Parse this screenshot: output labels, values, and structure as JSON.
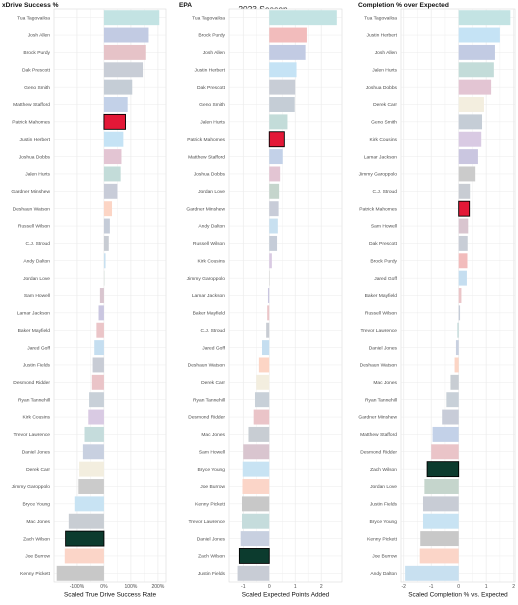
{
  "figure": {
    "season_label": "2023 Season",
    "colors": {
      "highlight_fill": "#e31837",
      "highlight_outline": "#000000",
      "panel_background": "#ffffff",
      "grid": "#ebebeb",
      "panel_border": "#d9d9d9"
    }
  },
  "chart_data": [
    {
      "type": "bar",
      "orientation": "horizontal",
      "title": "xDrive Success %",
      "xlabel": "Scaled True Drive Success Rate",
      "ylabel": "",
      "xlim": [
        -1.85,
        2.3
      ],
      "xticks": [
        -1,
        0,
        1,
        2
      ],
      "xtick_labels": [
        "-100%",
        "0%",
        "100%",
        "200%"
      ],
      "grid": true,
      "bars": [
        {
          "player": "Tua Tagovailoa",
          "value": 2.05,
          "color": "#c3e3e3"
        },
        {
          "player": "Josh Allen",
          "value": 1.65,
          "color": "#c2cbe3"
        },
        {
          "player": "Brock Purdy",
          "value": 1.55,
          "color": "#e6c3c8"
        },
        {
          "player": "Dak Prescott",
          "value": 1.45,
          "color": "#c8cdd6"
        },
        {
          "player": "Geno Smith",
          "value": 1.05,
          "color": "#c5cdd6"
        },
        {
          "player": "Matthew Stafford",
          "value": 0.88,
          "color": "#c3d1e8"
        },
        {
          "player": "Patrick Mahomes",
          "value": 0.8,
          "color": "#e31837",
          "highlight": true
        },
        {
          "player": "Justin Herbert",
          "value": 0.72,
          "color": "#c5e3f5"
        },
        {
          "player": "Joshua Dobbs",
          "value": 0.65,
          "color": "#e3c5d3"
        },
        {
          "player": "Jalen Hurts",
          "value": 0.62,
          "color": "#c3dcd9"
        },
        {
          "player": "Gardner Minshew",
          "value": 0.5,
          "color": "#c8ccd8"
        },
        {
          "player": "Deshaun Watson",
          "value": 0.3,
          "color": "#fcd5c5"
        },
        {
          "player": "Russell Wilson",
          "value": 0.22,
          "color": "#c5ccd8"
        },
        {
          "player": "C.J. Stroud",
          "value": 0.18,
          "color": "#c8ccd3"
        },
        {
          "player": "Andy Dalton",
          "value": 0.06,
          "color": "#c8e0f0"
        },
        {
          "player": "Jordan Love",
          "value": 0.0,
          "color": "#c5d5cc"
        },
        {
          "player": "Sam Howell",
          "value": -0.15,
          "color": "#d9c5cf"
        },
        {
          "player": "Lamar Jackson",
          "value": -0.2,
          "color": "#cac6e0"
        },
        {
          "player": "Baker Mayfield",
          "value": -0.28,
          "color": "#ebc5c8"
        },
        {
          "player": "Jared Goff",
          "value": -0.36,
          "color": "#c5def0"
        },
        {
          "player": "Justin Fields",
          "value": -0.42,
          "color": "#c8ccd5"
        },
        {
          "player": "Desmond Ridder",
          "value": -0.45,
          "color": "#eac4c8"
        },
        {
          "player": "Ryan Tannehill",
          "value": -0.55,
          "color": "#c8d0d8"
        },
        {
          "player": "Kirk Cousins",
          "value": -0.58,
          "color": "#d9cae3"
        },
        {
          "player": "Trevor Lawrence",
          "value": -0.72,
          "color": "#c5dcdc"
        },
        {
          "player": "Daniel Jones",
          "value": -0.78,
          "color": "#c8d0e0"
        },
        {
          "player": "Derek Carr",
          "value": -0.92,
          "color": "#f3eedf"
        },
        {
          "player": "Jimmy Garoppolo",
          "value": -0.95,
          "color": "#cbcbcb"
        },
        {
          "player": "Bryce Young",
          "value": -1.08,
          "color": "#c8e3f3"
        },
        {
          "player": "Mac Jones",
          "value": -1.3,
          "color": "#c8cdd3"
        },
        {
          "player": "Zach Wilson",
          "value": -1.42,
          "color": "#0c3b2e",
          "highlight": true
        },
        {
          "player": "Joe Burrow",
          "value": -1.45,
          "color": "#fbd5c8"
        },
        {
          "player": "Kenny Pickett",
          "value": -1.75,
          "color": "#c8c8c8"
        }
      ]
    },
    {
      "type": "bar",
      "orientation": "horizontal",
      "title": "EPA",
      "xlabel": "Scaled Expected Points Added",
      "ylabel": "",
      "xlim": [
        -1.55,
        2.8
      ],
      "xticks": [
        -1,
        0,
        1,
        2
      ],
      "xtick_labels": [
        "-1",
        "0",
        "1",
        "2"
      ],
      "grid": true,
      "bars": [
        {
          "player": "Tua Tagovailoa",
          "value": 2.6,
          "color": "#c3e3e3"
        },
        {
          "player": "Brock Purdy",
          "value": 1.45,
          "color": "#f2bcbc"
        },
        {
          "player": "Josh Allen",
          "value": 1.4,
          "color": "#c2cbe3"
        },
        {
          "player": "Justin Herbert",
          "value": 1.05,
          "color": "#c5e3f5"
        },
        {
          "player": "Dak Prescott",
          "value": 1.0,
          "color": "#c8cdd6"
        },
        {
          "player": "Geno Smith",
          "value": 0.98,
          "color": "#c5cdd6"
        },
        {
          "player": "Jalen Hurts",
          "value": 0.7,
          "color": "#c3dcd9"
        },
        {
          "player": "Patrick Mahomes",
          "value": 0.58,
          "color": "#e31837",
          "highlight": true
        },
        {
          "player": "Matthew Stafford",
          "value": 0.52,
          "color": "#c3d1e8"
        },
        {
          "player": "Joshua Dobbs",
          "value": 0.42,
          "color": "#e3c5d3"
        },
        {
          "player": "Jordan Love",
          "value": 0.38,
          "color": "#c5d5cc"
        },
        {
          "player": "Gardner Minshew",
          "value": 0.36,
          "color": "#c8ccd8"
        },
        {
          "player": "Andy Dalton",
          "value": 0.33,
          "color": "#c8e0f0"
        },
        {
          "player": "Russell Wilson",
          "value": 0.3,
          "color": "#c5ccd8"
        },
        {
          "player": "Kirk Cousins",
          "value": 0.1,
          "color": "#d9cae3"
        },
        {
          "player": "Jimmy Garoppolo",
          "value": 0.0,
          "color": "#cbcbcb"
        },
        {
          "player": "Lamar Jackson",
          "value": -0.05,
          "color": "#cac6e0"
        },
        {
          "player": "Baker Mayfield",
          "value": -0.08,
          "color": "#ebc5c8"
        },
        {
          "player": "C.J. Stroud",
          "value": -0.12,
          "color": "#c8ccd3"
        },
        {
          "player": "Jared Goff",
          "value": -0.28,
          "color": "#c5def0"
        },
        {
          "player": "Deshaun Watson",
          "value": -0.4,
          "color": "#fcd5c5"
        },
        {
          "player": "Derek Carr",
          "value": -0.5,
          "color": "#f3eedf"
        },
        {
          "player": "Ryan Tannehill",
          "value": -0.55,
          "color": "#c8d0d8"
        },
        {
          "player": "Desmond Ridder",
          "value": -0.6,
          "color": "#eac4c8"
        },
        {
          "player": "Mac Jones",
          "value": -0.8,
          "color": "#c8cdd3"
        },
        {
          "player": "Sam Howell",
          "value": -1.0,
          "color": "#d9c5cf"
        },
        {
          "player": "Bryce Young",
          "value": -1.02,
          "color": "#c8e3f3"
        },
        {
          "player": "Joe Burrow",
          "value": -1.03,
          "color": "#fbd5c8"
        },
        {
          "player": "Kenny Pickett",
          "value": -1.05,
          "color": "#c8c8c8"
        },
        {
          "player": "Trevor Lawrence",
          "value": -1.05,
          "color": "#c5dcdc"
        },
        {
          "player": "Daniel Jones",
          "value": -1.1,
          "color": "#c8d0e0"
        },
        {
          "player": "Zach Wilson",
          "value": -1.15,
          "color": "#0c3b2e",
          "highlight": true
        },
        {
          "player": "Justin Fields",
          "value": -1.22,
          "color": "#c8ccd5"
        }
      ]
    },
    {
      "type": "bar",
      "orientation": "horizontal",
      "title": "Completion % over Expected",
      "xlabel": "Scaled Completion % vs. Expected",
      "ylabel": "",
      "xlim": [
        -2.1,
        2.05
      ],
      "xticks": [
        -2,
        -1,
        0,
        1,
        2
      ],
      "xtick_labels": [
        "-2",
        "-1",
        "0",
        "1",
        "2"
      ],
      "grid": true,
      "bars": [
        {
          "player": "Tua Tagovailoa",
          "value": 1.88,
          "color": "#c3e3e3"
        },
        {
          "player": "Justin Herbert",
          "value": 1.5,
          "color": "#c5e3f5"
        },
        {
          "player": "Josh Allen",
          "value": 1.32,
          "color": "#c2cbe3"
        },
        {
          "player": "Jalen Hurts",
          "value": 1.28,
          "color": "#c3dcd9"
        },
        {
          "player": "Joshua Dobbs",
          "value": 1.18,
          "color": "#e3c5d3"
        },
        {
          "player": "Derek Carr",
          "value": 0.92,
          "color": "#f3eedf"
        },
        {
          "player": "Geno Smith",
          "value": 0.85,
          "color": "#c5cdd6"
        },
        {
          "player": "Kirk Cousins",
          "value": 0.82,
          "color": "#d9cae3"
        },
        {
          "player": "Lamar Jackson",
          "value": 0.7,
          "color": "#cac6e0"
        },
        {
          "player": "Jimmy Garoppolo",
          "value": 0.6,
          "color": "#cbcbcb"
        },
        {
          "player": "C.J. Stroud",
          "value": 0.42,
          "color": "#c8ccd3"
        },
        {
          "player": "Patrick Mahomes",
          "value": 0.4,
          "color": "#e31837",
          "highlight": true
        },
        {
          "player": "Sam Howell",
          "value": 0.35,
          "color": "#d9c5cf"
        },
        {
          "player": "Dak Prescott",
          "value": 0.33,
          "color": "#c8cdd6"
        },
        {
          "player": "Brock Purdy",
          "value": 0.32,
          "color": "#f2bcbc"
        },
        {
          "player": "Jared Goff",
          "value": 0.3,
          "color": "#c5def0"
        },
        {
          "player": "Baker Mayfield",
          "value": 0.1,
          "color": "#ebc5c8"
        },
        {
          "player": "Russell Wilson",
          "value": 0.05,
          "color": "#c5ccd8"
        },
        {
          "player": "Trevor Lawrence",
          "value": -0.05,
          "color": "#c5dcdc"
        },
        {
          "player": "Daniel Jones",
          "value": -0.1,
          "color": "#c8d0e0"
        },
        {
          "player": "Deshaun Watson",
          "value": -0.15,
          "color": "#fcd5c5"
        },
        {
          "player": "Mac Jones",
          "value": -0.3,
          "color": "#c8cdd3"
        },
        {
          "player": "Ryan Tannehill",
          "value": -0.45,
          "color": "#c8d0d8"
        },
        {
          "player": "Gardner Minshew",
          "value": -0.6,
          "color": "#c8ccd8"
        },
        {
          "player": "Matthew Stafford",
          "value": -0.95,
          "color": "#c3d1e8"
        },
        {
          "player": "Desmond Ridder",
          "value": -1.0,
          "color": "#eac4c8"
        },
        {
          "player": "Zach Wilson",
          "value": -1.15,
          "color": "#0c3b2e",
          "highlight": true
        },
        {
          "player": "Jordan Love",
          "value": -1.25,
          "color": "#c5d5cc"
        },
        {
          "player": "Justin Fields",
          "value": -1.3,
          "color": "#c8ccd5"
        },
        {
          "player": "Bryce Young",
          "value": -1.3,
          "color": "#c8e3f3"
        },
        {
          "player": "Kenny Pickett",
          "value": -1.4,
          "color": "#c8c8c8"
        },
        {
          "player": "Joe Burrow",
          "value": -1.42,
          "color": "#fbd5c8"
        },
        {
          "player": "Andy Dalton",
          "value": -1.95,
          "color": "#c8e0f0"
        }
      ]
    }
  ]
}
